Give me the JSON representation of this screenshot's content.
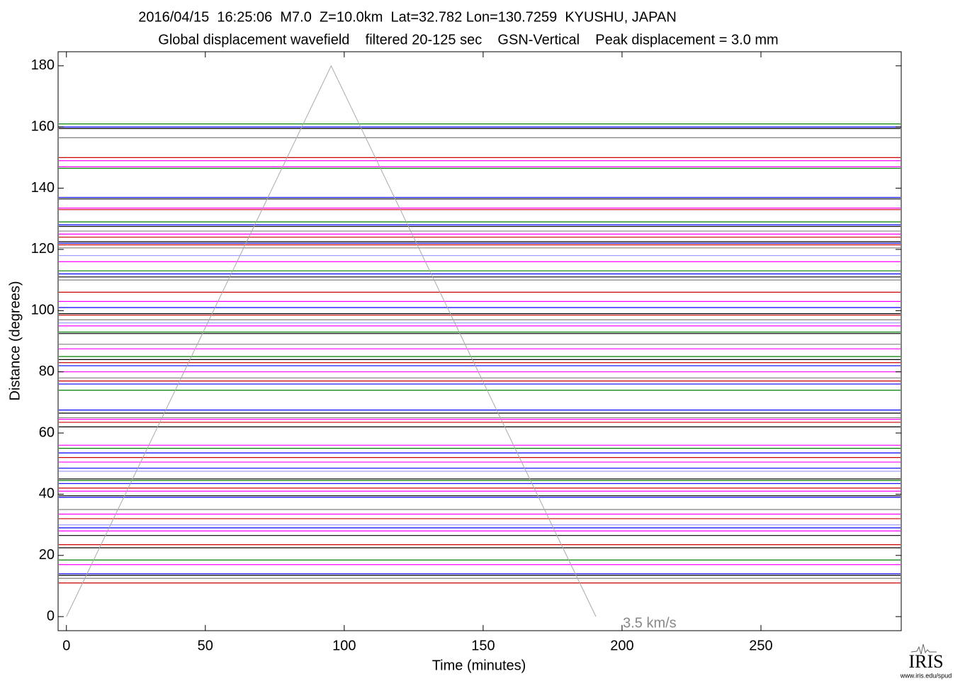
{
  "chart_data": {
    "type": "line",
    "title": "2016/04/15  16:25:06  M7.0  Z=10.0km  Lat=32.782 Lon=130.7259  KYUSHU, JAPAN",
    "subtitle": "Global displacement wavefield    filtered 20-125 sec    GSN-Vertical    Peak displacement = 3.0 mm",
    "xlabel": "Time (minutes)",
    "ylabel": "Distance (degrees)",
    "xlim": [
      -3,
      300.5
    ],
    "ylim": [
      -4.6,
      184.6
    ],
    "xticks": [
      0,
      50,
      100,
      150,
      200,
      250
    ],
    "yticks": [
      0,
      20,
      40,
      60,
      80,
      100,
      120,
      140,
      160,
      180
    ],
    "traces": {
      "distance": [
        161,
        160,
        159.5,
        156.5,
        150,
        149,
        147,
        146.5,
        137,
        136.5,
        133.5,
        133,
        129,
        128,
        127.5,
        126,
        125,
        124,
        122.5,
        122,
        121.5,
        120.5,
        118,
        116,
        113,
        112,
        111,
        110,
        106,
        103,
        101,
        99,
        98.5,
        97,
        96,
        95,
        93,
        92.5,
        89,
        87.5,
        85,
        84,
        83,
        82,
        80,
        78,
        77,
        76,
        74,
        67.5,
        66.5,
        65,
        64.5,
        63.5,
        62,
        56,
        55,
        53.5,
        52,
        50.5,
        48.5,
        47.5,
        45,
        44.5,
        43.5,
        42,
        41,
        39.5,
        39,
        35,
        33.5,
        32,
        30,
        29,
        28,
        26.5,
        23.5,
        22.5,
        18.5,
        17,
        14,
        13.5,
        12.5,
        11
      ],
      "color": [
        "#008000",
        "#0000ff",
        "#000000",
        "#808080",
        "#cc0000",
        "#ff00ff",
        "#ff00ff",
        "#008000",
        "#0000ff",
        "#000000",
        "#ff00ff",
        "#cc0000",
        "#008000",
        "#0000ff",
        "#000000",
        "#808080",
        "#ff00ff",
        "#cc0000",
        "#000000",
        "#0000ff",
        "#cc0000",
        "#808080",
        "#a0a0ff",
        "#ff00ff",
        "#008000",
        "#0000ff",
        "#000000",
        "#808080",
        "#cc0000",
        "#ff00ff",
        "#0000ff",
        "#000000",
        "#cc0000",
        "#808080",
        "#a0a0ff",
        "#ff00ff",
        "#008000",
        "#000000",
        "#808080",
        "#ff00ff",
        "#008000",
        "#000000",
        "#cc0000",
        "#0000ff",
        "#ff00ff",
        "#808080",
        "#cc0000",
        "#0000ff",
        "#008000",
        "#0000ff",
        "#000000",
        "#808080",
        "#ff00ff",
        "#cc0000",
        "#000000",
        "#ff00ff",
        "#008000",
        "#0000ff",
        "#cc0000",
        "#ff00ff",
        "#0000ff",
        "#a0a0ff",
        "#000000",
        "#008000",
        "#0000ff",
        "#cc0000",
        "#ff00ff",
        "#000000",
        "#0000ff",
        "#808080",
        "#ff00ff",
        "#cc0000",
        "#a0a0ff",
        "#0000ff",
        "#ff00ff",
        "#000000",
        "#cc0000",
        "#000000",
        "#008000",
        "#ff00ff",
        "#0000ff",
        "#000000",
        "#808080",
        "#cc0000"
      ]
    },
    "reference_line": {
      "label": "3.5 km/s",
      "x": [
        0,
        95.3,
        190.6
      ],
      "y": [
        0,
        180,
        0
      ],
      "color": "#aaaaaa"
    },
    "logo": {
      "text": "IRIS",
      "url": "www.iris.edu/spud"
    }
  }
}
